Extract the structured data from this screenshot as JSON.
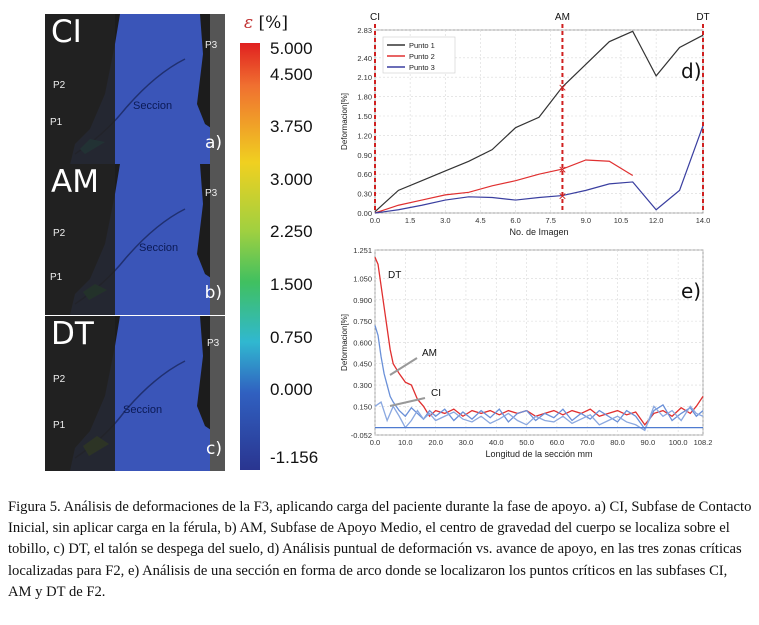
{
  "colorbar": {
    "symbol": "ε",
    "unit": "[%]",
    "ticks": [
      "5.000",
      "4.500",
      "3.750",
      "3.000",
      "2.250",
      "1.500",
      "0.750",
      "0.000",
      "-1.156"
    ]
  },
  "panels": [
    {
      "id": "ci",
      "title": "CI",
      "sublabel": "a)",
      "points": [
        "P1",
        "P2",
        "P3"
      ],
      "section": "Seccion"
    },
    {
      "id": "am",
      "title": "AM",
      "sublabel": "b)",
      "points": [
        "P1",
        "P2",
        "P3"
      ],
      "section": "Seccion"
    },
    {
      "id": "dt",
      "title": "DT",
      "sublabel": "c)",
      "points": [
        "P1",
        "P2",
        "P3"
      ],
      "section": "Seccion"
    }
  ],
  "chart_data": [
    {
      "type": "line",
      "panel_label": "d)",
      "xlabel": "No. de Imagen",
      "ylabel": "Deformacion[%]",
      "xlim": [
        0,
        14
      ],
      "ylim": [
        0,
        2.83
      ],
      "xticks": [
        "0.0",
        "1.5",
        "3.0",
        "4.5",
        "6.0",
        "7.5",
        "9.0",
        "10.5",
        "12.0",
        "14.0"
      ],
      "xtick_values": [
        0,
        1.5,
        3,
        4.5,
        6,
        7.5,
        9,
        10.5,
        12,
        14
      ],
      "yticks": [
        "0.00",
        "0.30",
        "0.60",
        "0.90",
        "1.20",
        "1.50",
        "1.80",
        "2.10",
        "2.40",
        "2.83"
      ],
      "ytick_values": [
        0,
        0.3,
        0.6,
        0.9,
        1.2,
        1.5,
        1.8,
        2.1,
        2.4,
        2.83
      ],
      "phase_markers": [
        {
          "label": "CI",
          "x": 0
        },
        {
          "label": "AM",
          "x": 8
        },
        {
          "label": "DT",
          "x": 14
        }
      ],
      "legend": [
        "Punto 1",
        "Punto 2",
        "Punto 3"
      ],
      "series": [
        {
          "name": "Punto 1",
          "color": "#333333",
          "x": [
            0,
            1,
            2,
            3,
            4,
            5,
            6,
            7,
            8,
            9,
            10,
            11,
            12,
            13,
            14
          ],
          "y": [
            0.02,
            0.35,
            0.5,
            0.65,
            0.8,
            0.98,
            1.32,
            1.48,
            1.95,
            2.3,
            2.65,
            2.81,
            2.12,
            2.56,
            2.75
          ]
        },
        {
          "name": "Punto 2",
          "color": "#e03030",
          "x": [
            0,
            1,
            2,
            3,
            4,
            5,
            6,
            7,
            8,
            9,
            10,
            11
          ],
          "y": [
            0.0,
            0.12,
            0.2,
            0.28,
            0.32,
            0.42,
            0.5,
            0.6,
            0.68,
            0.82,
            0.8,
            0.58
          ]
        },
        {
          "name": "Punto 3",
          "color": "#3a3fa0",
          "x": [
            0,
            1,
            2,
            3,
            4,
            5,
            6,
            7,
            8,
            9,
            10,
            11,
            12,
            13,
            14
          ],
          "y": [
            0.0,
            0.05,
            0.12,
            0.2,
            0.25,
            0.24,
            0.2,
            0.24,
            0.27,
            0.35,
            0.45,
            0.48,
            0.05,
            0.35,
            1.35
          ]
        }
      ]
    },
    {
      "type": "line",
      "panel_label": "e)",
      "xlabel": "Longitud de la sección mm",
      "ylabel": "Deformacion[%]",
      "xlim": [
        0,
        108.2
      ],
      "ylim": [
        -0.052,
        1.251
      ],
      "xticks": [
        "0.0",
        "10.0",
        "20.0",
        "30.0",
        "40.0",
        "50.0",
        "60.0",
        "70.0",
        "80.0",
        "90.0",
        "100.0",
        "108.2"
      ],
      "xtick_values": [
        0,
        10,
        20,
        30,
        40,
        50,
        60,
        70,
        80,
        90,
        100,
        108.2
      ],
      "yticks": [
        "-0.052",
        "0.150",
        "0.300",
        "0.450",
        "0.600",
        "0.750",
        "0.900",
        "1.050",
        "1.251"
      ],
      "ytick_values": [
        -0.052,
        0.15,
        0.3,
        0.45,
        0.6,
        0.75,
        0.9,
        1.05,
        1.251
      ],
      "annotations": [
        "DT",
        "AM",
        "CI"
      ],
      "series": [
        {
          "color": "#e03030",
          "x": [
            0,
            1,
            2,
            3,
            4,
            5,
            6,
            8,
            10,
            12,
            14,
            16,
            18,
            20,
            23,
            26,
            29,
            32,
            35,
            38,
            41,
            44,
            47,
            50,
            53,
            56,
            59,
            62,
            65,
            68,
            71,
            74,
            77,
            80,
            83,
            86,
            89,
            92,
            95,
            98,
            101,
            104,
            106,
            108.2
          ],
          "y": [
            1.2,
            1.15,
            1.0,
            0.85,
            0.7,
            0.55,
            0.45,
            0.38,
            0.32,
            0.3,
            0.2,
            0.15,
            0.08,
            0.12,
            0.1,
            0.13,
            0.08,
            0.12,
            0.1,
            0.12,
            0.09,
            0.12,
            0.1,
            0.12,
            0.08,
            0.1,
            0.12,
            0.09,
            0.12,
            0.1,
            0.13,
            0.08,
            0.1,
            0.12,
            0.09,
            0.11,
            0.02,
            0.1,
            0.12,
            0.08,
            0.14,
            0.1,
            0.15,
            0.22
          ]
        },
        {
          "color": "#6a90d8",
          "x": [
            0,
            1,
            2,
            3,
            4,
            5,
            6,
            8,
            10,
            12,
            14,
            16,
            18,
            20,
            23,
            26,
            29,
            32,
            35,
            38,
            41,
            44,
            47,
            50,
            53,
            56,
            59,
            62,
            65,
            68,
            71,
            74,
            77,
            80,
            83,
            86,
            89,
            92,
            95,
            98,
            101,
            104,
            106,
            108.2
          ],
          "y": [
            0.72,
            0.65,
            0.5,
            0.38,
            0.3,
            0.22,
            0.18,
            0.12,
            0.08,
            0.14,
            0.1,
            0.06,
            0.12,
            0.08,
            0.13,
            0.05,
            0.11,
            0.06,
            0.12,
            0.07,
            0.13,
            0.04,
            0.1,
            0.12,
            0.05,
            0.1,
            0.07,
            0.13,
            0.05,
            0.1,
            0.06,
            0.12,
            0.08,
            0.04,
            0.12,
            0.08,
            -0.01,
            0.12,
            0.16,
            0.05,
            0.1,
            0.14,
            0.08,
            0.12
          ]
        },
        {
          "color": "#8aa8e0",
          "x": [
            0,
            2,
            4,
            6,
            8,
            10,
            12,
            14,
            16,
            18,
            20,
            23,
            26,
            29,
            32,
            35,
            38,
            41,
            44,
            47,
            50,
            53,
            56,
            59,
            62,
            65,
            68,
            71,
            74,
            77,
            80,
            83,
            86,
            89,
            92,
            95,
            98,
            101,
            104,
            106,
            108.2
          ],
          "y": [
            0.15,
            0.18,
            0.05,
            0.15,
            0.08,
            0.0,
            0.05,
            0.12,
            0.06,
            0.1,
            0.05,
            0.08,
            0.11,
            0.06,
            0.04,
            0.08,
            0.03,
            0.06,
            0.1,
            0.05,
            0.02,
            0.08,
            0.05,
            0.04,
            0.08,
            0.03,
            0.06,
            0.09,
            0.02,
            0.05,
            0.08,
            0.04,
            0.02,
            -0.02,
            0.15,
            0.08,
            0.12,
            0.05,
            0.15,
            0.1,
            0.08
          ]
        },
        {
          "color": "#4f7bd0",
          "x": [
            0,
            108.2
          ],
          "y": [
            0.0,
            0.0
          ]
        }
      ]
    }
  ],
  "caption": {
    "figure_label": "Figura 5.",
    "text": "Análisis de deformaciones de la F3, aplicando carga del paciente durante la fase de apoyo. a) CI, Subfase de Contacto Inicial, sin aplicar carga en la férula, b) AM, Subfase de Apoyo Medio, el centro de gravedad del cuerpo se localiza sobre el tobillo, c) DT, el talón se despega del suelo, d) Análisis puntual de deformación vs. avance de apoyo, en las tres zonas críticas localizadas para F2, e) Análisis de una sección en forma de arco donde se localizaron los puntos críticos en las subfases CI, AM y DT de F2."
  }
}
